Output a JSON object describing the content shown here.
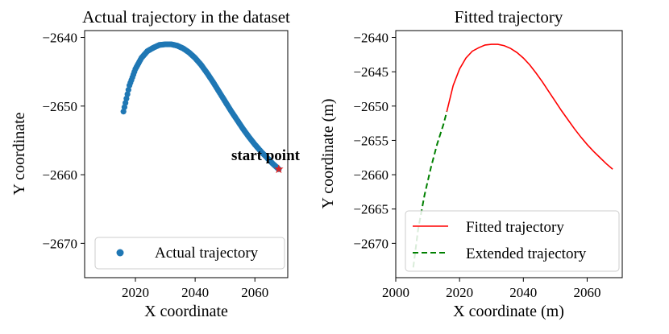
{
  "chart_data": [
    {
      "type": "scatter",
      "title": "Actual trajectory in the dataset",
      "xlabel": "X coordinate",
      "ylabel": "Y coordinate",
      "xlim": [
        2003,
        2071
      ],
      "ylim": [
        -2675,
        -2639
      ],
      "xticks": [
        2020,
        2040,
        2060
      ],
      "yticks": [
        -2640,
        -2650,
        -2660,
        -2670
      ],
      "series": [
        {
          "name": "Actual trajectory",
          "color": "#1f77b4",
          "x_range": [
            2016,
            2068
          ],
          "points": [
            [
              2016.0,
              -2650.8
            ],
            [
              2018.0,
              -2647.0
            ],
            [
              2020.0,
              -2644.6
            ],
            [
              2022.0,
              -2643.0
            ],
            [
              2024.0,
              -2642.0
            ],
            [
              2026.0,
              -2641.5
            ],
            [
              2028.0,
              -2641.1
            ],
            [
              2030.0,
              -2641.0
            ],
            [
              2032.0,
              -2641.0
            ],
            [
              2034.0,
              -2641.2
            ],
            [
              2036.0,
              -2641.6
            ],
            [
              2038.0,
              -2642.2
            ],
            [
              2040.0,
              -2643.0
            ],
            [
              2042.0,
              -2644.0
            ],
            [
              2044.0,
              -2645.2
            ],
            [
              2046.0,
              -2646.5
            ],
            [
              2048.0,
              -2647.9
            ],
            [
              2050.0,
              -2649.3
            ],
            [
              2052.0,
              -2650.7
            ],
            [
              2054.0,
              -2652.0
            ],
            [
              2056.0,
              -2653.3
            ],
            [
              2058.0,
              -2654.5
            ],
            [
              2060.0,
              -2655.6
            ],
            [
              2062.0,
              -2656.6
            ],
            [
              2064.0,
              -2657.5
            ],
            [
              2066.0,
              -2658.4
            ],
            [
              2068.0,
              -2659.2
            ]
          ]
        }
      ],
      "annotation": {
        "text": "start point",
        "x": 2068,
        "y": -2659.2,
        "marker_color": "#d62728"
      },
      "legend": "lower-right"
    },
    {
      "type": "line",
      "title": "Fitted trajectory",
      "xlabel": "X coordinate (m)",
      "ylabel": "Y coordinate (m)",
      "xlim": [
        2000,
        2071
      ],
      "ylim": [
        -2675,
        -2639
      ],
      "xticks": [
        2000,
        2020,
        2040,
        2060
      ],
      "yticks": [
        -2640,
        -2645,
        -2650,
        -2655,
        -2660,
        -2665,
        -2670
      ],
      "series": [
        {
          "name": "Fitted trajectory",
          "color": "#ff0000",
          "style": "solid",
          "points": [
            [
              2016.0,
              -2650.8
            ],
            [
              2018.0,
              -2647.0
            ],
            [
              2020.0,
              -2644.6
            ],
            [
              2022.0,
              -2643.0
            ],
            [
              2024.0,
              -2642.0
            ],
            [
              2026.0,
              -2641.5
            ],
            [
              2028.0,
              -2641.1
            ],
            [
              2030.0,
              -2641.0
            ],
            [
              2032.0,
              -2641.0
            ],
            [
              2034.0,
              -2641.2
            ],
            [
              2036.0,
              -2641.6
            ],
            [
              2038.0,
              -2642.2
            ],
            [
              2040.0,
              -2643.0
            ],
            [
              2042.0,
              -2644.0
            ],
            [
              2044.0,
              -2645.2
            ],
            [
              2046.0,
              -2646.5
            ],
            [
              2048.0,
              -2647.9
            ],
            [
              2050.0,
              -2649.3
            ],
            [
              2052.0,
              -2650.7
            ],
            [
              2054.0,
              -2652.0
            ],
            [
              2056.0,
              -2653.3
            ],
            [
              2058.0,
              -2654.5
            ],
            [
              2060.0,
              -2655.6
            ],
            [
              2062.0,
              -2656.6
            ],
            [
              2064.0,
              -2657.5
            ],
            [
              2066.0,
              -2658.4
            ],
            [
              2068.0,
              -2659.2
            ]
          ]
        },
        {
          "name": "Extended trajectory",
          "color": "#008000",
          "style": "dashed",
          "points": [
            [
              2005.5,
              -2673.5
            ],
            [
              2007.0,
              -2668.0
            ],
            [
              2009.0,
              -2663.0
            ],
            [
              2011.0,
              -2659.0
            ],
            [
              2013.0,
              -2655.5
            ],
            [
              2015.0,
              -2652.6
            ],
            [
              2016.0,
              -2650.8
            ]
          ]
        }
      ],
      "legend": "lower-right"
    }
  ]
}
